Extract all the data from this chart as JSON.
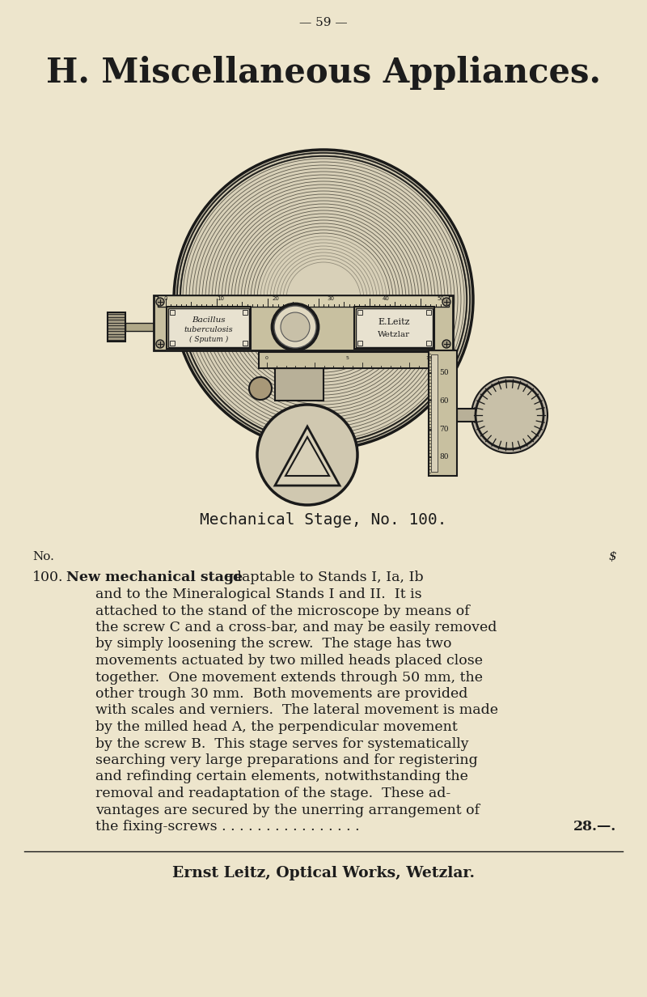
{
  "bg_color": "#ede5cc",
  "page_number": "— 59 —",
  "title": "H. Miscellaneous Appliances.",
  "caption": "Mechanical Stage, No. 100.",
  "col_header_no": "No.",
  "col_header_price": "$",
  "item_number": "100.",
  "item_bold": "New mechanical stage",
  "paragraph_lines": [
    " adaptable to Stands I, Ia, Ib",
    "and to the Mineralogical Stands I and II.  It is",
    "attached to the stand of the microscope by means of",
    "the screw C and a cross-bar, and may be easily removed",
    "by simply loosening the screw.  The stage has two",
    "movements actuated by two milled heads placed close",
    "together.  One movement extends through 50 mm, the",
    "other trough 30 mm.  Both movements are provided",
    "with scales and verniers.  The lateral movement is made",
    "by the milled head A, the perpendicular movement",
    "by the screw B.  This stage serves for systematically",
    "searching very large preparations and for registering",
    "and refinding certain elements, notwithstanding the",
    "removal and readaptation of the stage.  These ad-",
    "vantages are secured by the unerring arrangement of"
  ],
  "last_line": "the fixing-screws . . . . . . . . . . . . . . . .",
  "item_price": "28.—.",
  "footer_small_caps": "Ernst Leitz",
  "footer_normal": ", Optical Works, ",
  "footer_sc2": "Wetzlar",
  "footer_full": "Ernst Leitz, Optical Works, Wetzlar.",
  "text_color": "#1c1c1c",
  "dark_color": "#1a1a1a",
  "mid_color": "#555548",
  "light_engraving": "#888070"
}
